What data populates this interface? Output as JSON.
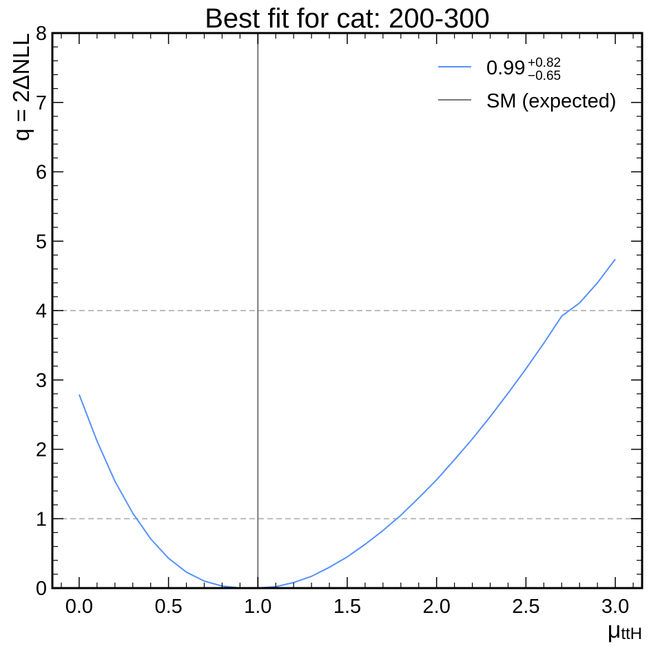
{
  "chart_data": {
    "type": "line",
    "title": "Best fit for cat: 200-300",
    "ylabel": "q = 2ΔNLL",
    "xlabel": {
      "main": "μ",
      "sub": "ttH"
    },
    "xlim": [
      -0.15,
      3.15
    ],
    "ylim": [
      0,
      8
    ],
    "xticks": [
      {
        "value": 0.0,
        "label": "0.0"
      },
      {
        "value": 0.5,
        "label": "0.5"
      },
      {
        "value": 1.0,
        "label": "1.0"
      },
      {
        "value": 1.5,
        "label": "1.5"
      },
      {
        "value": 2.0,
        "label": "2.0"
      },
      {
        "value": 2.5,
        "label": "2.5"
      },
      {
        "value": 3.0,
        "label": "3.0"
      }
    ],
    "yticks": [
      {
        "value": 0,
        "label": "0"
      },
      {
        "value": 1,
        "label": "1"
      },
      {
        "value": 2,
        "label": "2"
      },
      {
        "value": 3,
        "label": "3"
      },
      {
        "value": 4,
        "label": "4"
      },
      {
        "value": 5,
        "label": "5"
      },
      {
        "value": 6,
        "label": "6"
      },
      {
        "value": 7,
        "label": "7"
      },
      {
        "value": 8,
        "label": "8"
      }
    ],
    "hlines": [
      {
        "y": 1,
        "color": "#bbbbbb",
        "style": "dashed"
      },
      {
        "y": 4,
        "color": "#bbbbbb",
        "style": "dashed"
      }
    ],
    "vlines": [
      {
        "x": 1.0,
        "color": "#777777",
        "legend": "SM (expected)"
      }
    ],
    "series": [
      {
        "name": "fit",
        "legend": {
          "value": "0.99",
          "sup": "+0.82",
          "sub": "−0.65"
        },
        "color": "#5790fc",
        "x": [
          0.0,
          0.1,
          0.2,
          0.3,
          0.4,
          0.5,
          0.6,
          0.7,
          0.8,
          0.9,
          0.99,
          1.1,
          1.2,
          1.3,
          1.4,
          1.5,
          1.6,
          1.7,
          1.8,
          1.9,
          2.0,
          2.1,
          2.2,
          2.3,
          2.4,
          2.5,
          2.6,
          2.7,
          2.8,
          2.9,
          3.0
        ],
        "y": [
          2.79,
          2.12,
          1.54,
          1.08,
          0.71,
          0.43,
          0.23,
          0.1,
          0.03,
          0.002,
          0.0,
          0.02,
          0.08,
          0.17,
          0.3,
          0.45,
          0.63,
          0.83,
          1.05,
          1.3,
          1.56,
          1.85,
          2.15,
          2.47,
          2.81,
          3.16,
          3.53,
          3.92,
          4.11,
          4.4,
          4.74
        ]
      }
    ],
    "legend_position": "top-right",
    "grid": false
  }
}
